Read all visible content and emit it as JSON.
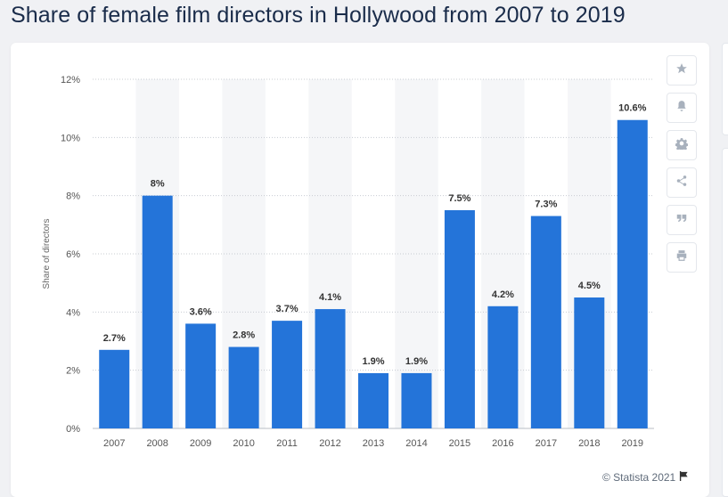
{
  "page": {
    "title": "Share of female film directors in Hollywood from 2007 to 2019",
    "credit": "© Statista 2021"
  },
  "toolbar": {
    "items": [
      {
        "name": "favorite",
        "icon": "star-icon"
      },
      {
        "name": "notification",
        "icon": "bell-icon"
      },
      {
        "name": "settings",
        "icon": "gear-icon"
      },
      {
        "name": "share",
        "icon": "share-icon"
      },
      {
        "name": "cite",
        "icon": "quote-icon"
      },
      {
        "name": "print",
        "icon": "print-icon"
      }
    ]
  },
  "colors": {
    "bar": "#2474d9",
    "band": "#f5f6f8",
    "grid": "#c8ccd2",
    "label": "#333333",
    "tick": "#555555"
  },
  "chart_data": {
    "type": "bar",
    "title": "Share of female film directors in Hollywood from 2007 to 2019",
    "categories": [
      "2007",
      "2008",
      "2009",
      "2010",
      "2011",
      "2012",
      "2013",
      "2014",
      "2015",
      "2016",
      "2017",
      "2018",
      "2019"
    ],
    "values": [
      2.7,
      8,
      3.6,
      2.8,
      3.7,
      4.1,
      1.9,
      1.9,
      7.5,
      4.2,
      7.3,
      4.5,
      10.6
    ],
    "value_labels": [
      "2.7%",
      "8%",
      "3.6%",
      "2.8%",
      "3.7%",
      "4.1%",
      "1.9%",
      "1.9%",
      "7.5%",
      "4.2%",
      "7.3%",
      "4.5%",
      "10.6%"
    ],
    "xlabel": "",
    "ylabel": "Share of directors",
    "ylim": [
      0,
      12
    ],
    "yticks": [
      0,
      2,
      4,
      6,
      8,
      10,
      12
    ],
    "ytick_labels": [
      "0%",
      "2%",
      "4%",
      "6%",
      "8%",
      "10%",
      "12%"
    ],
    "grid": true,
    "alternating_bands": true
  }
}
